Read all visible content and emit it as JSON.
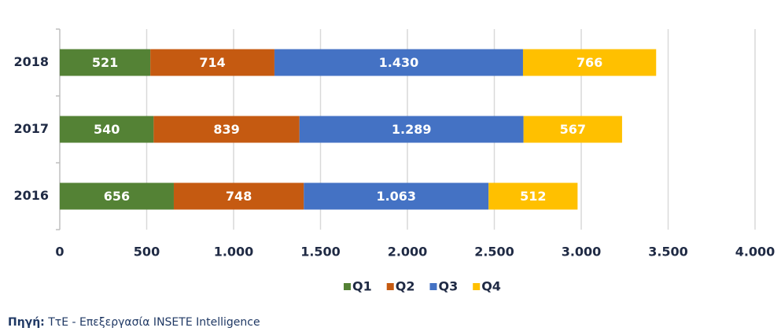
{
  "chart_data": {
    "type": "stacked_barh",
    "categories": [
      "2018",
      "2017",
      "2016"
    ],
    "series": [
      {
        "name": "Q1",
        "color": "#548235",
        "values": [
          521,
          540,
          656
        ],
        "value_labels": [
          "521",
          "540",
          "656"
        ]
      },
      {
        "name": "Q2",
        "color": "#c55a11",
        "values": [
          714,
          839,
          748
        ],
        "value_labels": [
          "714",
          "839",
          "748"
        ]
      },
      {
        "name": "Q3",
        "color": "#4472c4",
        "values": [
          1430,
          1289,
          1063
        ],
        "value_labels": [
          "1.430",
          "1.289",
          "1.063"
        ]
      },
      {
        "name": "Q4",
        "color": "#ffc000",
        "values": [
          766,
          567,
          512
        ],
        "value_labels": [
          "766",
          "567",
          "512"
        ]
      }
    ],
    "xlim": [
      0,
      4000
    ],
    "xticks": [
      0,
      500,
      {
        "value": 1000,
        "label": "1.000"
      },
      {
        "value": 1500,
        "label": "1.500"
      },
      {
        "value": 2000,
        "label": "2.000"
      },
      {
        "value": 2500,
        "label": "2.500"
      },
      {
        "value": 3000,
        "label": "3.000"
      },
      {
        "value": 3500,
        "label": "3.500"
      },
      {
        "value": 4000,
        "label": "4.000"
      }
    ],
    "grid": true,
    "legend": "bottom",
    "source_label": "Πηγή:",
    "source_text": "ΤτΕ - Επεξεργασία INSETE Intelligence"
  }
}
